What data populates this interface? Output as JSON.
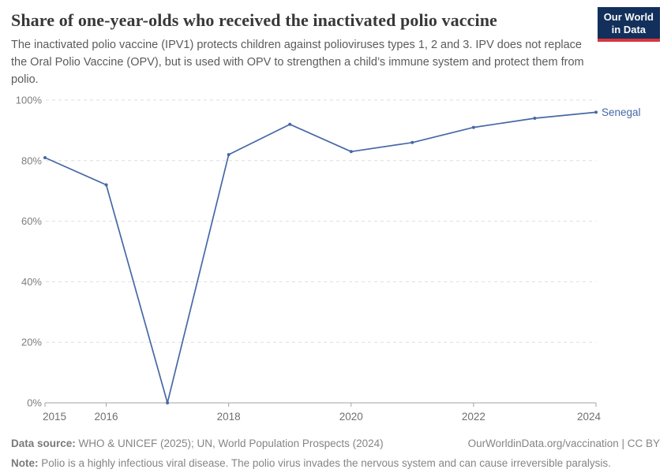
{
  "header": {
    "title": "Share of one-year-olds who received the inactivated polio vaccine",
    "subtitle": "The inactivated polio vaccine (IPV1) protects children against polioviruses types 1, 2 and 3. IPV does not replace the Oral Polio Vaccine (OPV), but is used with OPV to strengthen a child’s immune system and protect them from polio.",
    "logo": {
      "line1": "Our World",
      "line2": "in Data",
      "bg_color": "#12305b",
      "accent_color": "#d6363e"
    }
  },
  "chart_data": {
    "type": "line",
    "title": "Share of one-year-olds who received the inactivated polio vaccine",
    "x": [
      2015,
      2016,
      2017,
      2018,
      2019,
      2020,
      2021,
      2022,
      2023,
      2024
    ],
    "series": [
      {
        "name": "Senegal",
        "color": "#4668a5",
        "values": [
          81,
          72,
          0,
          82,
          92,
          83,
          86,
          91,
          94,
          96
        ]
      }
    ],
    "xlabel": "",
    "ylabel": "",
    "ylim": [
      0,
      100
    ],
    "yticks": [
      0,
      20,
      40,
      60,
      80,
      100
    ],
    "ytick_suffix": "%",
    "xticks": [
      2015,
      2016,
      2018,
      2020,
      2022,
      2024
    ],
    "grid": "horizontal-dashed",
    "legend_position": "end-of-line-label",
    "end_label": "Senegal"
  },
  "footer": {
    "datasource_label": "Data source:",
    "datasource_text": " WHO & UNICEF (2025); UN, World Population Prospects (2024)",
    "rights": "OurWorldinData.org/vaccination | CC BY",
    "note_label": "Note:",
    "note_text": " Polio is a highly infectious viral disease. The polio virus invades the nervous system and can cause irreversible paralysis."
  },
  "colors": {
    "line": "#4668a5",
    "grid": "#dedede",
    "axis": "#a3a3a3",
    "ytick_label": "#7d7d7d",
    "xtick_label": "#707070",
    "title": "#383838",
    "subtitle": "#5b5b5b",
    "footer": "#858585"
  }
}
